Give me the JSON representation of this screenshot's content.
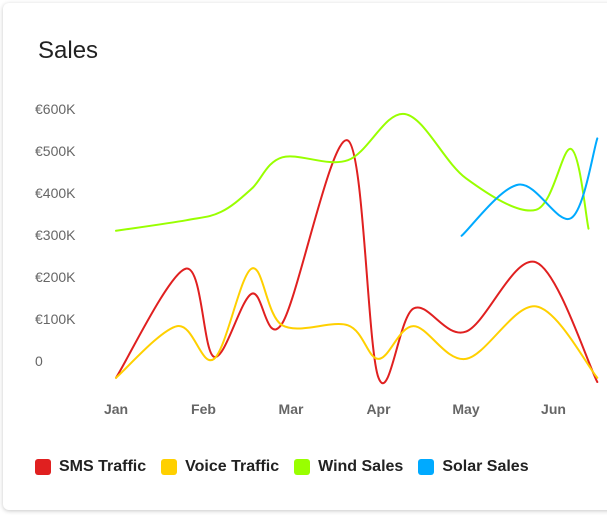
{
  "card": {
    "title": "Sales"
  },
  "chart_data": {
    "type": "line",
    "title": "Sales",
    "xlabel": "",
    "ylabel": "",
    "y_ticks": [
      "0",
      "€100K",
      "€200K",
      "€300K",
      "€400K",
      "€500K",
      "€600K"
    ],
    "x_ticks": [
      "Jan",
      "Feb",
      "Mar",
      "Apr",
      "May",
      "Jun"
    ],
    "ylim": [
      -90000,
      600000
    ],
    "legend_position": "bottom-left",
    "grid": false,
    "series": [
      {
        "name": "SMS Traffic",
        "color": "#e02020",
        "points": [
          [
            0.0,
            -40000
          ],
          [
            0.8,
            220000
          ],
          [
            1.12,
            10000
          ],
          [
            1.55,
            160000
          ],
          [
            1.9,
            90000
          ],
          [
            2.65,
            525000
          ],
          [
            3.0,
            -40000
          ],
          [
            3.4,
            125000
          ],
          [
            4.0,
            70000
          ],
          [
            4.8,
            235000
          ],
          [
            5.5,
            -50000
          ]
        ]
      },
      {
        "name": "Voice Traffic",
        "color": "#ffd000",
        "points": [
          [
            0.0,
            -40000
          ],
          [
            0.7,
            83000
          ],
          [
            1.12,
            5000
          ],
          [
            1.55,
            220000
          ],
          [
            1.9,
            85000
          ],
          [
            2.65,
            85000
          ],
          [
            3.0,
            5000
          ],
          [
            3.4,
            83000
          ],
          [
            4.0,
            5000
          ],
          [
            4.8,
            130000
          ],
          [
            5.5,
            -40000
          ]
        ]
      },
      {
        "name": "Wind Sales",
        "color": "#99ff00",
        "points": [
          [
            0.0,
            310000
          ],
          [
            0.8,
            335000
          ],
          [
            1.2,
            355000
          ],
          [
            1.55,
            410000
          ],
          [
            1.9,
            485000
          ],
          [
            2.65,
            478000
          ],
          [
            3.3,
            588000
          ],
          [
            4.0,
            435000
          ],
          [
            4.8,
            360000
          ],
          [
            5.2,
            505000
          ],
          [
            5.4,
            315000
          ]
        ]
      },
      {
        "name": "Solar Sales",
        "color": "#00aaff",
        "points": [
          [
            3.95,
            298000
          ],
          [
            4.6,
            420000
          ],
          [
            5.2,
            340000
          ],
          [
            5.5,
            530000
          ]
        ]
      }
    ]
  },
  "legend": [
    {
      "label": "SMS Traffic",
      "color": "#e02020"
    },
    {
      "label": "Voice Traffic",
      "color": "#ffd000"
    },
    {
      "label": "Wind Sales",
      "color": "#99ff00"
    },
    {
      "label": "Solar Sales",
      "color": "#00aaff"
    }
  ]
}
